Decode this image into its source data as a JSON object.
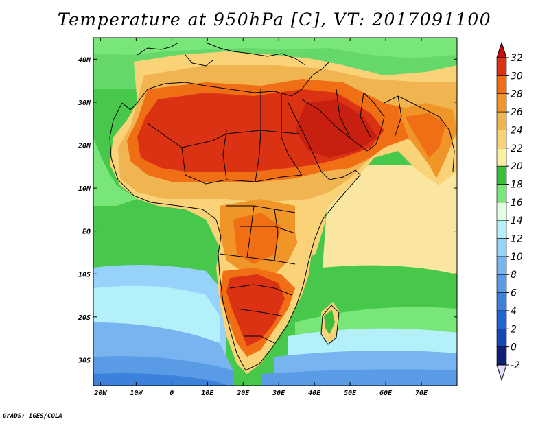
{
  "title": "Temperature at 950hPa [C], VT: 2017091100",
  "credit": "GrADS: IGES/COLA",
  "map": {
    "lon_range": [
      -22,
      80
    ],
    "lat_range": [
      -36,
      45
    ],
    "lon_ticks": [
      -20,
      -10,
      0,
      10,
      20,
      30,
      40,
      50,
      60,
      70
    ],
    "lon_tick_labels": [
      "20W",
      "10W",
      "0",
      "10E",
      "20E",
      "30E",
      "40E",
      "50E",
      "60E",
      "70E"
    ],
    "lat_ticks": [
      40,
      30,
      20,
      10,
      0,
      -10,
      -20,
      -30
    ],
    "lat_tick_labels": [
      "40N",
      "30N",
      "20N",
      "10N",
      "EQ",
      "10S",
      "20S",
      "30S"
    ],
    "variable": "Temperature",
    "level": "950hPa",
    "units": "C"
  },
  "colorbar": {
    "levels": [
      -2,
      0,
      2,
      4,
      6,
      8,
      10,
      12,
      14,
      16,
      18,
      20,
      22,
      24,
      26,
      28,
      30,
      32
    ],
    "labels": [
      "-2",
      "0",
      "2",
      "4",
      "6",
      "8",
      "10",
      "12",
      "14",
      "16",
      "18",
      "20",
      "22",
      "24",
      "26",
      "28",
      "30",
      "32"
    ],
    "colors": [
      "#101e78",
      "#1446b4",
      "#2064d2",
      "#3c82dc",
      "#5a9be6",
      "#78b4f0",
      "#96d2fa",
      "#b4f0fa",
      "#e1ffe1",
      "#78e678",
      "#3cbe3c",
      "#faf0a0",
      "#fad278",
      "#f0b450",
      "#f09628",
      "#f06e14",
      "#dc3214"
    ],
    "under_color": "#e6dcff",
    "over_color": "#c01010"
  },
  "colors": {
    "ocean_green": "#48c84a",
    "land_hot": "#dc2a14"
  }
}
